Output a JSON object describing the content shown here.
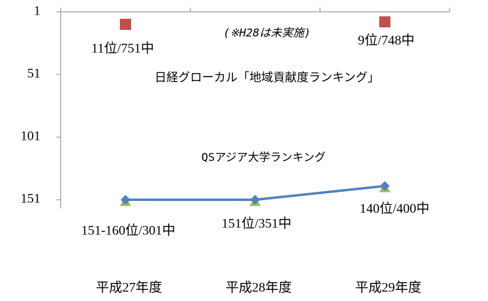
{
  "chart_data": {
    "type": "line",
    "categories": [
      "平成27年度",
      "平成28年度",
      "平成29年度"
    ],
    "ylim": [
      1,
      158
    ],
    "yticks": [
      1,
      51,
      101,
      151
    ],
    "y_inverted": true,
    "series": [
      {
        "color": "#4f81bd",
        "marker": "diamond",
        "line": true,
        "values": [
          151,
          151,
          140
        ],
        "value_labels": [
          "151-160位/301中",
          "151位/351中",
          "140位/400中"
        ]
      },
      {
        "color": "#9bbb59",
        "marker": "triangle",
        "line": false,
        "values": [
          151,
          151,
          140
        ]
      },
      {
        "color": "#c0504d",
        "marker": "square",
        "line": false,
        "values": [
          11,
          null,
          9
        ],
        "value_labels": [
          "11位/751中",
          null,
          "9位/748中"
        ]
      }
    ],
    "annotations": [
      "(※H28は未実施)",
      "日経グローカル「地域貢献度ランキング」",
      "QSアジア大学ランキング"
    ]
  }
}
